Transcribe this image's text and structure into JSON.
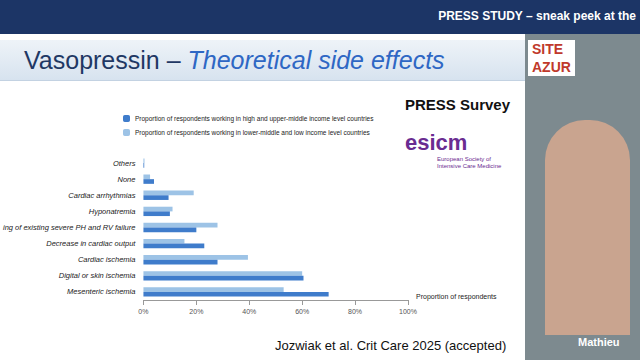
{
  "chart_data": {
    "type": "bar",
    "orientation": "horizontal",
    "categories": [
      "Mesenteric ischemia",
      "Digital or skin ischemia",
      "Cardiac ischemia",
      "Decrease in cardiac output",
      "ing of existing severe PH and RV failure",
      "Hyponatremia",
      "Cardiac arrhythmias",
      "None",
      "Others"
    ],
    "series": [
      {
        "name": "Proportion of respondents working in high and upper-middle income level countries",
        "color": "#3f7ccb",
        "values": [
          70,
          60.5,
          28,
          23,
          20,
          10,
          9.5,
          4,
          0.3
        ]
      },
      {
        "name": "Proportion of respondents working in lower-middle and low income level countries",
        "color": "#9dc3e6",
        "values": [
          53,
          60,
          39.5,
          15.5,
          28,
          11,
          19,
          2.5,
          0.4
        ]
      }
    ],
    "xlabel": "Proportion of respondents",
    "xlim": [
      0,
      100
    ],
    "xticks": [
      {
        "value": 0,
        "label": "0%"
      },
      {
        "value": 20,
        "label": "20%"
      },
      {
        "value": 40,
        "label": "40%"
      },
      {
        "value": 60,
        "label": "60%"
      },
      {
        "value": 80,
        "label": "80%"
      },
      {
        "value": 100,
        "label": "100%"
      }
    ],
    "legend": "upper left",
    "grid": false
  },
  "slide": {
    "header": "PRESS STUDY – sneak peek at the",
    "title": "Vasopressin –",
    "title_emphasis": "Theoretical side effects",
    "institution": [
      "SITE",
      "AZUR"
    ],
    "survey_label": "PRESS Survey",
    "logo": "esicm",
    "logo_caption": [
      "European Society of",
      "Intensive Care Medicine"
    ],
    "citation": "Jozwiak et al. Crit Care 2025 (accepted)",
    "speaker": "Mathieu"
  }
}
